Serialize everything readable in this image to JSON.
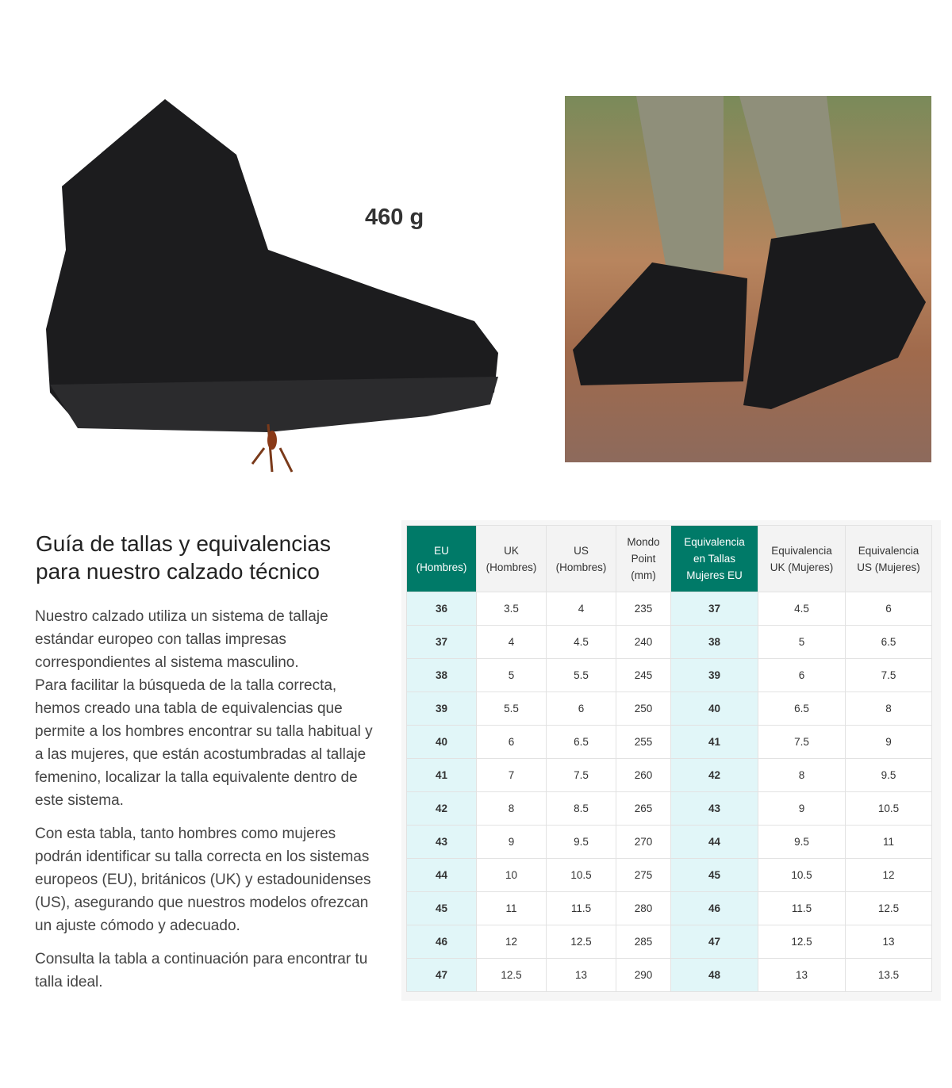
{
  "product": {
    "weight": "460 g",
    "images": [
      "boot-side-view",
      "boot-worn-photo"
    ]
  },
  "guide": {
    "title_line1": "Guía de tallas y equivalencias",
    "title_line2": "para nuestro calzado técnico",
    "p1": "Nuestro calzado utiliza un sistema de tallaje estándar europeo con tallas impresas correspondientes al sistema masculino.",
    "p1b": "Para facilitar la búsqueda de la talla correcta, hemos creado una tabla de equivalencias que permite a los hombres encontrar su talla habitual y a las mujeres, que están acostumbradas al tallaje femenino, localizar la talla equivalente dentro de este sistema.",
    "p2": "Con esta tabla, tanto hombres como mujeres podrán identificar su talla correcta en los sistemas europeos (EU), británicos (UK) y estadounidenses (US), asegurando que nuestros modelos ofrezcan un ajuste cómodo y adecuado.",
    "p3": "Consulta la tabla a continuación para encontrar tu talla ideal."
  },
  "colors": {
    "accent": "#007a68",
    "highlight": "#e1f6f8"
  },
  "table": {
    "headers": [
      [
        "EU",
        "(Hombres)"
      ],
      [
        "UK",
        "(Hombres)"
      ],
      [
        "US",
        "(Hombres)"
      ],
      [
        "Mondo",
        "Point",
        "(mm)"
      ],
      [
        "Equivalencia",
        "en Tallas",
        "Mujeres EU"
      ],
      [
        "Equivalencia",
        "UK (Mujeres)"
      ],
      [
        "Equivalencia",
        "US (Mujeres)"
      ]
    ],
    "rows": [
      [
        "36",
        "3.5",
        "4",
        "235",
        "37",
        "4.5",
        "6"
      ],
      [
        "37",
        "4",
        "4.5",
        "240",
        "38",
        "5",
        "6.5"
      ],
      [
        "38",
        "5",
        "5.5",
        "245",
        "39",
        "6",
        "7.5"
      ],
      [
        "39",
        "5.5",
        "6",
        "250",
        "40",
        "6.5",
        "8"
      ],
      [
        "40",
        "6",
        "6.5",
        "255",
        "41",
        "7.5",
        "9"
      ],
      [
        "41",
        "7",
        "7.5",
        "260",
        "42",
        "8",
        "9.5"
      ],
      [
        "42",
        "8",
        "8.5",
        "265",
        "43",
        "9",
        "10.5"
      ],
      [
        "43",
        "9",
        "9.5",
        "270",
        "44",
        "9.5",
        "11"
      ],
      [
        "44",
        "10",
        "10.5",
        "275",
        "45",
        "10.5",
        "12"
      ],
      [
        "45",
        "11",
        "11.5",
        "280",
        "46",
        "11.5",
        "12.5"
      ],
      [
        "46",
        "12",
        "12.5",
        "285",
        "47",
        "12.5",
        "13"
      ],
      [
        "47",
        "12.5",
        "13",
        "290",
        "48",
        "13",
        "13.5"
      ]
    ]
  }
}
